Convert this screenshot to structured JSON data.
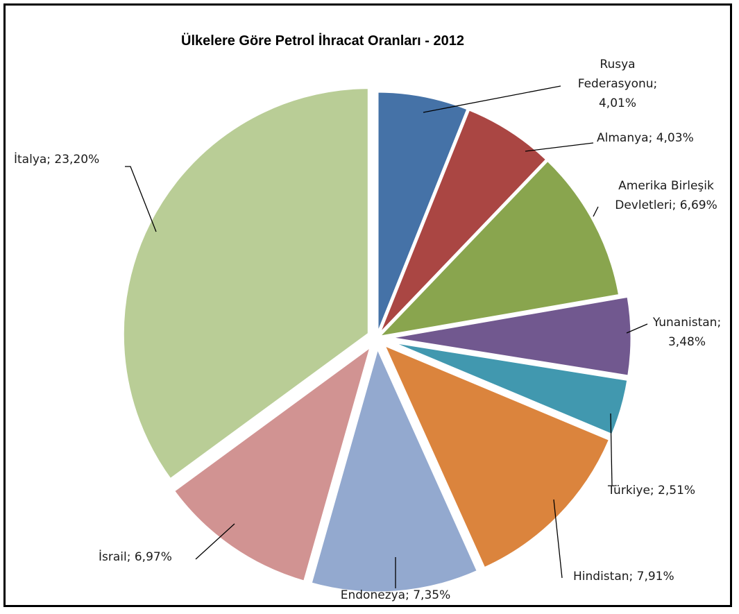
{
  "chart_data": {
    "type": "pie",
    "title": "Ülkelere Göre Petrol İhracat Oranları - 2012",
    "slices": [
      {
        "name": "Rusya Federasyonu",
        "value": 4.01,
        "label": [
          "Rusya",
          "Federasyonu;",
          "4,01%"
        ],
        "color": "#4572a7",
        "exploded": false
      },
      {
        "name": "Almanya",
        "value": 4.03,
        "label": [
          "Almanya; 4,03%"
        ],
        "color": "#aa4643",
        "exploded": false
      },
      {
        "name": "Amerika Birleşik Devletleri",
        "value": 6.69,
        "label": [
          "Amerika Birleşik",
          "Devletleri; 6,69%"
        ],
        "color": "#89a54e",
        "exploded": false
      },
      {
        "name": "Yunanistan",
        "value": 3.48,
        "label": [
          "Yunanistan;",
          "3,48%"
        ],
        "color": "#71588f",
        "exploded": true
      },
      {
        "name": "Türkiye",
        "value": 2.51,
        "label": [
          "Türkiye; 2,51%"
        ],
        "color": "#4198af",
        "exploded": true
      },
      {
        "name": "Hindistan",
        "value": 7.91,
        "label": [
          "Hindistan; 7,91%"
        ],
        "color": "#db843d",
        "exploded": true
      },
      {
        "name": "Endonezya",
        "value": 7.35,
        "label": [
          "Endonezya; 7,35%"
        ],
        "color": "#93a9cf",
        "exploded": true
      },
      {
        "name": "İsrail",
        "value": 6.97,
        "label": [
          "İsrail; 6,97%"
        ],
        "color": "#d19392",
        "exploded": true
      },
      {
        "name": "İtalya",
        "value": 23.2,
        "label": [
          "İtalya; 23,20%"
        ],
        "color": "#b9cd96",
        "exploded": true
      }
    ]
  }
}
